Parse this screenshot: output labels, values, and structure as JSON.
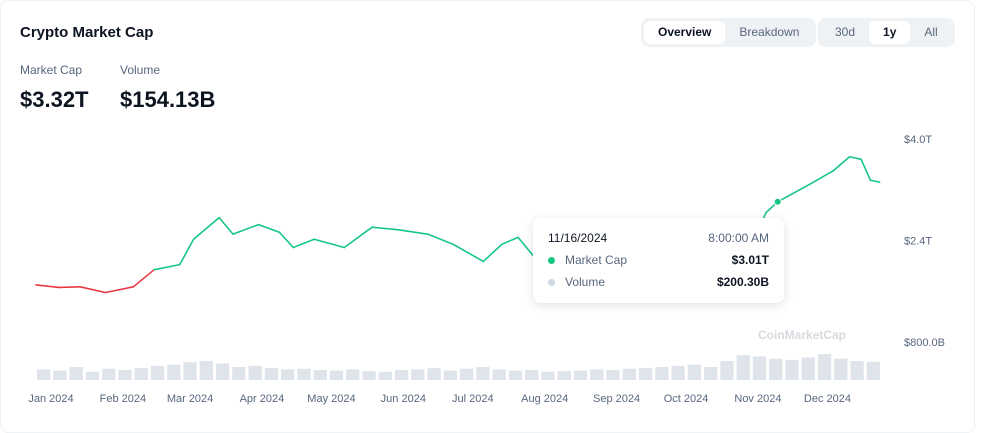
{
  "header": {
    "title": "Crypto Market Cap"
  },
  "view_toggle": [
    {
      "label": "Overview",
      "active": true
    },
    {
      "label": "Breakdown",
      "active": false
    }
  ],
  "range_toggle": [
    {
      "label": "30d",
      "active": false
    },
    {
      "label": "1y",
      "active": true
    },
    {
      "label": "All",
      "active": false
    }
  ],
  "stats": {
    "market_cap_label": "Market Cap",
    "market_cap_value": "$3.32T",
    "volume_label": "Volume",
    "volume_value": "$154.13B"
  },
  "tooltip": {
    "date": "11/16/2024",
    "time": "8:00:00 AM",
    "rows": [
      {
        "label": "Market Cap",
        "value": "$3.01T",
        "color": "#16c784"
      },
      {
        "label": "Volume",
        "value": "$200.30B",
        "color": "#cfd6e4"
      }
    ]
  },
  "watermark": "CoinMarketCap",
  "colors": {
    "up": "#16c784",
    "down": "#ea3943",
    "volume": "#dfe3ea"
  },
  "chart_data": {
    "type": "line",
    "xlabel": "",
    "ylabel": "",
    "x_ticks": [
      "Jan 2024",
      "Feb 2024",
      "Mar 2024",
      "Apr 2024",
      "May 2024",
      "Jun 2024",
      "Jul 2024",
      "Aug 2024",
      "Sep 2024",
      "Oct 2024",
      "Nov 2024",
      "Dec 2024"
    ],
    "y_ticks": [
      "$800.0B",
      "$2.4T",
      "$4.0T"
    ],
    "ylim_trillions": [
      0.8,
      4.0
    ],
    "grid": false,
    "series": [
      {
        "name": "Market Cap",
        "unit": "T USD",
        "points": [
          [
            "2024-01-01",
            1.7
          ],
          [
            "2024-01-11",
            1.66
          ],
          [
            "2024-01-20",
            1.67
          ],
          [
            "2024-01-31",
            1.58
          ],
          [
            "2024-02-12",
            1.67
          ],
          [
            "2024-02-21",
            1.94
          ],
          [
            "2024-03-03",
            2.02
          ],
          [
            "2024-03-09",
            2.42
          ],
          [
            "2024-03-20",
            2.76
          ],
          [
            "2024-03-26",
            2.5
          ],
          [
            "2024-04-06",
            2.65
          ],
          [
            "2024-04-15",
            2.53
          ],
          [
            "2024-04-21",
            2.29
          ],
          [
            "2024-04-30",
            2.42
          ],
          [
            "2024-05-13",
            2.29
          ],
          [
            "2024-05-25",
            2.61
          ],
          [
            "2024-06-05",
            2.57
          ],
          [
            "2024-06-18",
            2.5
          ],
          [
            "2024-06-29",
            2.34
          ],
          [
            "2024-07-12",
            2.07
          ],
          [
            "2024-07-20",
            2.34
          ],
          [
            "2024-07-27",
            2.45
          ],
          [
            "2024-08-05",
            2.05
          ],
          [
            "2024-08-25",
            2.3
          ],
          [
            "2024-09-07",
            2.0
          ],
          [
            "2024-09-28",
            2.35
          ],
          [
            "2024-10-10",
            2.2
          ],
          [
            "2024-10-29",
            2.45
          ],
          [
            "2024-11-05",
            2.35
          ],
          [
            "2024-11-11",
            2.84
          ],
          [
            "2024-11-16",
            3.01
          ],
          [
            "2024-11-30",
            3.29
          ],
          [
            "2024-12-10",
            3.5
          ],
          [
            "2024-12-17",
            3.72
          ],
          [
            "2024-12-22",
            3.68
          ],
          [
            "2024-12-26",
            3.35
          ],
          [
            "2024-12-30",
            3.32
          ]
        ]
      },
      {
        "name": "Volume",
        "unit": "B USD",
        "values": [
          90,
          80,
          110,
          70,
          95,
          85,
          100,
          120,
          130,
          150,
          160,
          140,
          110,
          120,
          100,
          90,
          95,
          85,
          80,
          90,
          75,
          70,
          85,
          90,
          100,
          80,
          95,
          110,
          90,
          80,
          85,
          70,
          75,
          80,
          90,
          85,
          95,
          100,
          110,
          120,
          130,
          110,
          160,
          210,
          200,
          180,
          170,
          190,
          220,
          180,
          160,
          154
        ]
      }
    ]
  }
}
